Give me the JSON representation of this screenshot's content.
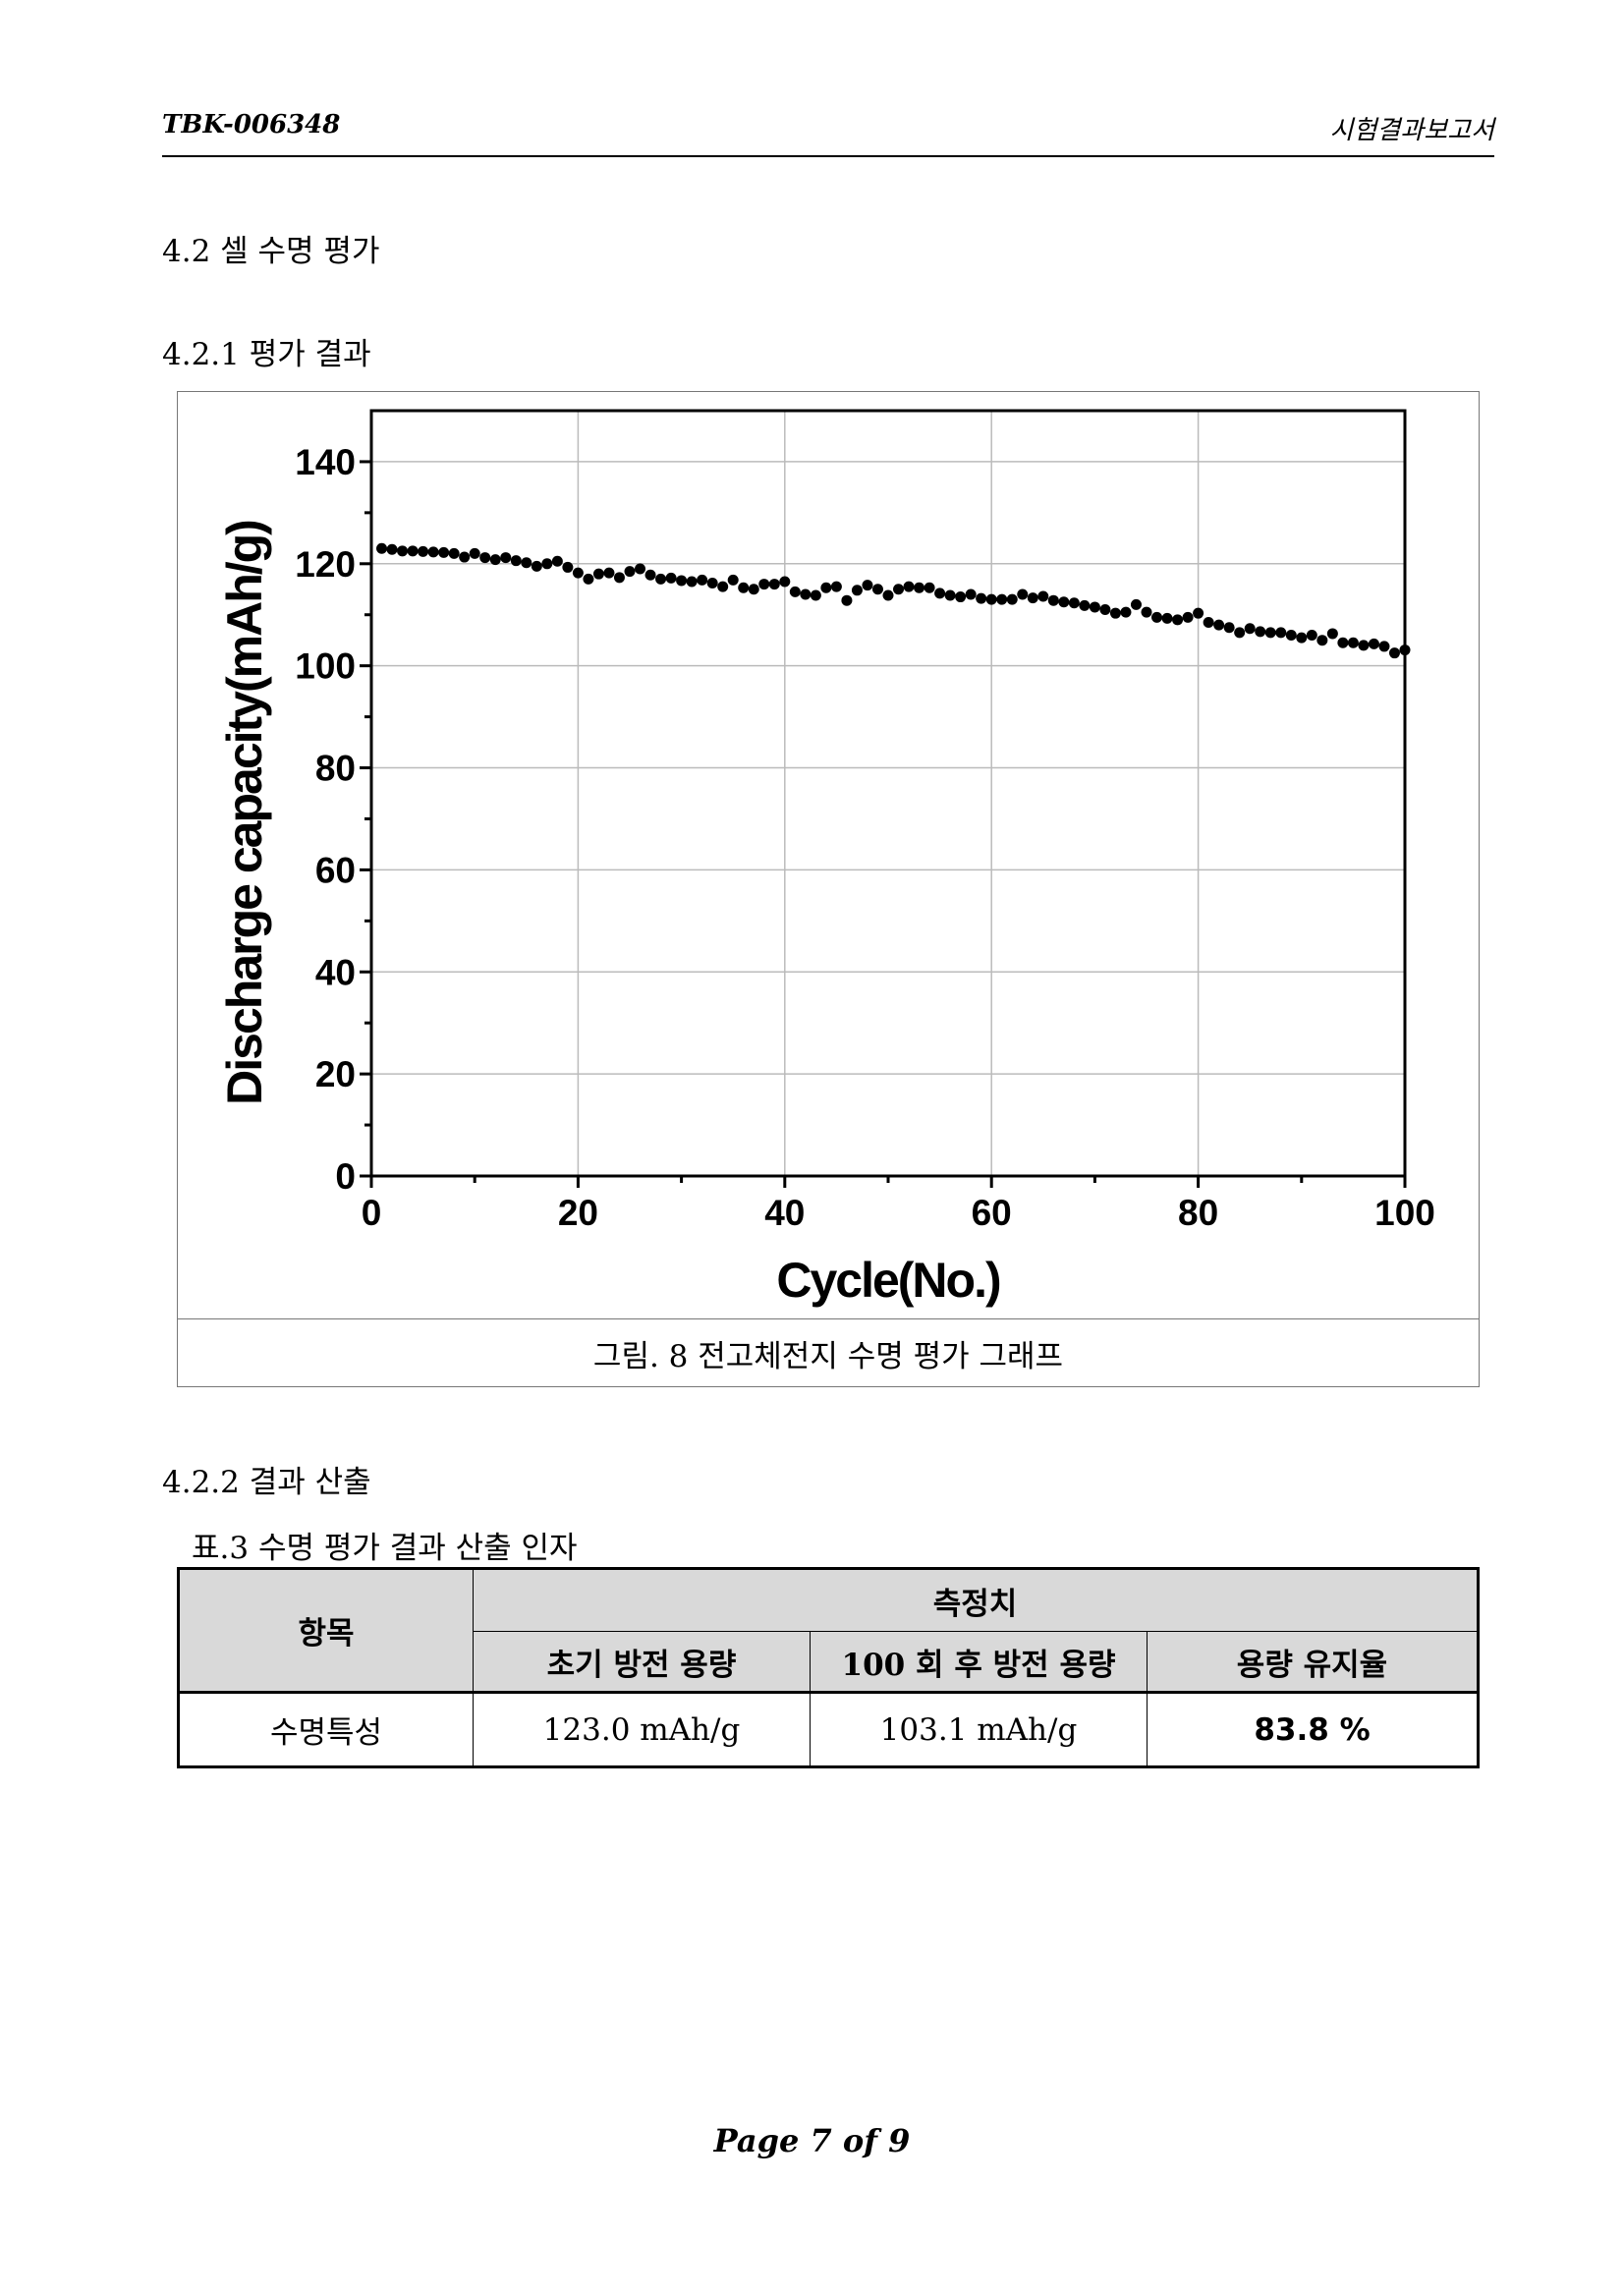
{
  "header": {
    "doc_id": "TBK-006348",
    "doc_type": "시험결과보고서"
  },
  "sections": [
    {
      "title": "4.2 셀 수명 평가"
    },
    {
      "title": "4.2.1 평가 결과"
    },
    {
      "title": "4.2.2 결과 산출"
    }
  ],
  "chart_data": {
    "type": "scatter",
    "x_label": "Cycle(No.)",
    "y_label": "Discharge capacity(mAh/g)",
    "color": "#000000",
    "grid": true,
    "xlim": [
      0,
      100
    ],
    "xticks": [
      0,
      20,
      40,
      60,
      80,
      100
    ],
    "ylim": [
      0,
      150
    ],
    "yticks": [
      0,
      20,
      40,
      60,
      80,
      100,
      120,
      140
    ],
    "x": [
      1,
      2,
      3,
      4,
      5,
      6,
      7,
      8,
      9,
      10,
      11,
      12,
      13,
      14,
      15,
      16,
      17,
      18,
      19,
      20,
      21,
      22,
      23,
      24,
      25,
      26,
      27,
      28,
      29,
      30,
      31,
      32,
      33,
      34,
      35,
      36,
      37,
      38,
      39,
      40,
      41,
      42,
      43,
      44,
      45,
      46,
      47,
      48,
      49,
      50,
      51,
      52,
      53,
      54,
      55,
      56,
      57,
      58,
      59,
      60,
      61,
      62,
      63,
      64,
      65,
      66,
      67,
      68,
      69,
      70,
      71,
      72,
      73,
      74,
      75,
      76,
      77,
      78,
      79,
      80,
      81,
      82,
      83,
      84,
      85,
      86,
      87,
      88,
      89,
      90,
      91,
      92,
      93,
      94,
      95,
      96,
      97,
      98,
      99,
      100
    ],
    "values": [
      123.0,
      122.8,
      122.5,
      122.5,
      122.4,
      122.3,
      122.2,
      122.0,
      121.3,
      122.0,
      121.2,
      120.8,
      121.2,
      120.6,
      120.2,
      119.5,
      120.0,
      120.5,
      119.3,
      118.2,
      117.0,
      118.0,
      118.2,
      117.3,
      118.5,
      119.0,
      117.8,
      117.0,
      117.2,
      116.7,
      116.5,
      116.8,
      116.2,
      115.5,
      116.8,
      115.3,
      115.0,
      116.0,
      116.0,
      116.5,
      114.5,
      114.0,
      113.8,
      115.3,
      115.5,
      112.8,
      114.8,
      115.8,
      115.0,
      113.8,
      115.0,
      115.5,
      115.3,
      115.3,
      114.2,
      113.8,
      113.5,
      114.0,
      113.2,
      113.0,
      113.0,
      113.0,
      114.0,
      113.3,
      113.6,
      112.8,
      112.5,
      112.3,
      111.8,
      111.5,
      111.0,
      110.3,
      110.5,
      112.0,
      110.5,
      109.5,
      109.3,
      109.0,
      109.5,
      110.3,
      108.5,
      108.0,
      107.5,
      106.5,
      107.3,
      106.7,
      106.5,
      106.5,
      106.0,
      105.5,
      106.0,
      105.0,
      106.3,
      104.5,
      104.5,
      104.0,
      104.3,
      103.8,
      102.5,
      103.1
    ]
  },
  "figure_caption": "그림. 8 전고체전지 수명 평가 그래프",
  "table": {
    "caption": "표.3 수명 평가 결과 산출 인자",
    "item_header": "항목",
    "group_header": "측정치",
    "columns": [
      "초기 방전 용량",
      "100 회 후 방전 용량",
      "용량 유지율"
    ],
    "rows": [
      [
        "수명특성",
        "123.0 mAh/g",
        "103.1 mAh/g",
        "83.8 %"
      ]
    ]
  },
  "footer": "Page 7 of 9"
}
